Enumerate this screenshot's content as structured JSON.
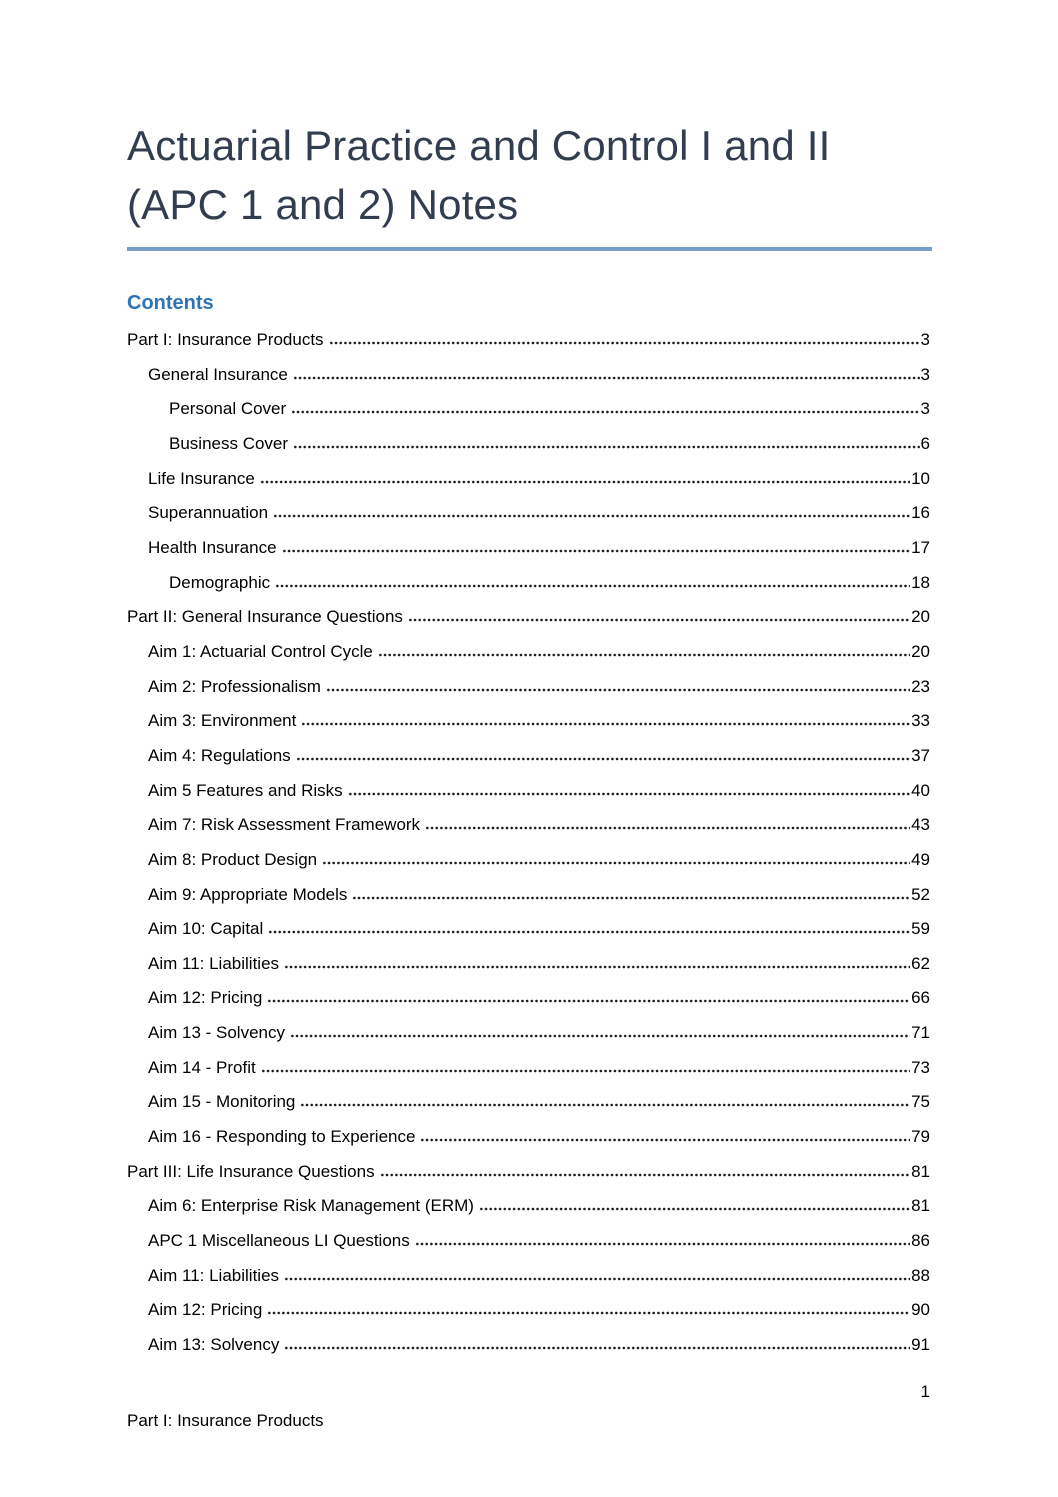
{
  "page": {
    "title_lines": [
      "Actuarial Practice and Control I and II",
      "(APC 1 and 2) Notes"
    ]
  },
  "contents": {
    "heading": "Contents",
    "entries": [
      {
        "label": "Part I: Insurance Products",
        "page": "3",
        "level": 1
      },
      {
        "label": "General Insurance",
        "page": "3",
        "level": 2
      },
      {
        "label": "Personal Cover",
        "page": "3",
        "level": 3
      },
      {
        "label": "Business Cover",
        "page": "6",
        "level": 3
      },
      {
        "label": "Life Insurance",
        "page": "10",
        "level": 2
      },
      {
        "label": "Superannuation",
        "page": "16",
        "level": 2
      },
      {
        "label": "Health Insurance",
        "page": "17",
        "level": 2
      },
      {
        "label": "Demographic",
        "page": "18",
        "level": 3
      },
      {
        "label": "Part II: General Insurance Questions",
        "page": "20",
        "level": 1
      },
      {
        "label": "Aim 1: Actuarial Control Cycle",
        "page": "20",
        "level": 2
      },
      {
        "label": "Aim 2: Professionalism",
        "page": "23",
        "level": 2
      },
      {
        "label": "Aim 3: Environment",
        "page": "33",
        "level": 2
      },
      {
        "label": "Aim 4: Regulations",
        "page": "37",
        "level": 2
      },
      {
        "label": "Aim 5 Features and Risks",
        "page": "40",
        "level": 2
      },
      {
        "label": "Aim 7: Risk Assessment Framework",
        "page": "43",
        "level": 2
      },
      {
        "label": "Aim 8: Product Design",
        "page": "49",
        "level": 2
      },
      {
        "label": "Aim 9: Appropriate Models",
        "page": "52",
        "level": 2
      },
      {
        "label": "Aim 10: Capital",
        "page": "59",
        "level": 2
      },
      {
        "label": "Aim 11: Liabilities",
        "page": "62",
        "level": 2
      },
      {
        "label": "Aim 12: Pricing",
        "page": "66",
        "level": 2
      },
      {
        "label": "Aim 13 - Solvency",
        "page": "71",
        "level": 2
      },
      {
        "label": "Aim 14 - Profit",
        "page": "73",
        "level": 2
      },
      {
        "label": "Aim 15 - Monitoring",
        "page": "75",
        "level": 2
      },
      {
        "label": "Aim 16 - Responding to Experience",
        "page": "79",
        "level": 2
      },
      {
        "label": "Part III: Life Insurance Questions",
        "page": "81",
        "level": 1
      },
      {
        "label": "Aim 6: Enterprise Risk Management (ERM)",
        "page": "81",
        "level": 2
      },
      {
        "label": "APC 1 Miscellaneous LI Questions",
        "page": "86",
        "level": 2
      },
      {
        "label": "Aim 11: Liabilities",
        "page": "88",
        "level": 2
      },
      {
        "label": "Aim 12: Pricing",
        "page": "90",
        "level": 2
      },
      {
        "label": "Aim 13: Solvency",
        "page": "91",
        "level": 2
      }
    ]
  },
  "footer": {
    "page_number": "1",
    "text": "Part I: Insurance Products"
  },
  "colors": {
    "title_text": "#323E4F",
    "title_rule": "#78A0C8",
    "contents_heading": "#2E74B5",
    "body_text": "#000000"
  }
}
